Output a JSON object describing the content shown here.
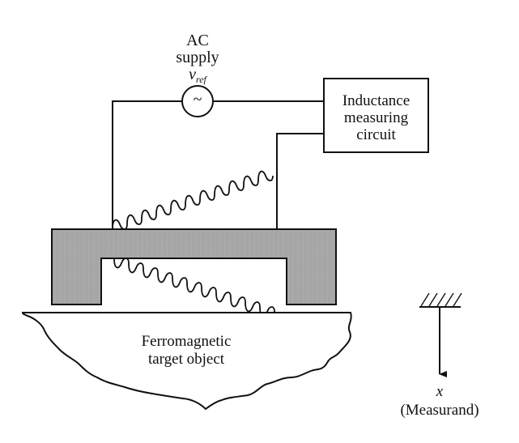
{
  "supply": {
    "line1": "AC",
    "line2": "supply",
    "symbol_var": "v",
    "symbol_sub": "ref",
    "glyph": "~"
  },
  "measuring_box": {
    "line1": "Inductance",
    "line2": "measuring",
    "line3": "circuit"
  },
  "target": {
    "line1": "Ferromagnetic",
    "line2": "target object"
  },
  "measurand": {
    "symbol": "x",
    "label": "(Measurand)"
  },
  "colors": {
    "ink": "#111111",
    "core_fill": "#a9a9a9",
    "background": "#ffffff"
  }
}
